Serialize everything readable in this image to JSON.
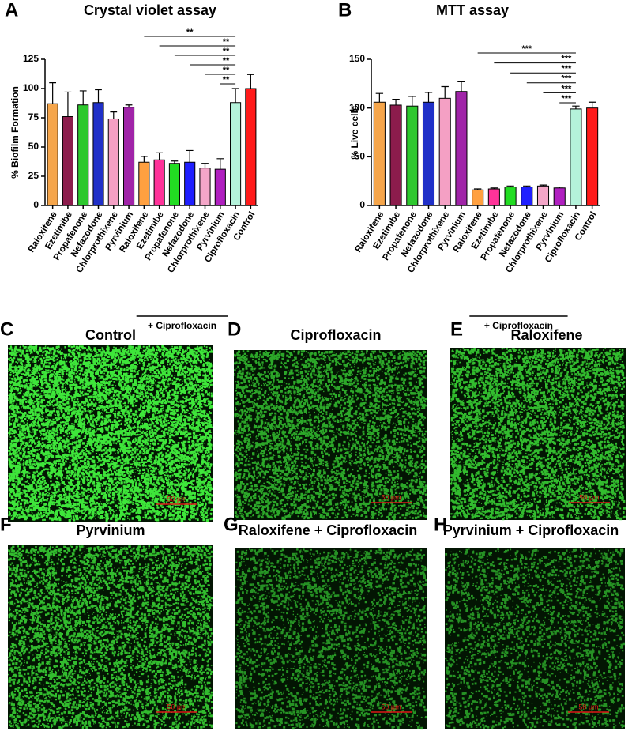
{
  "chart_data": [
    {
      "type": "bar",
      "letter": "A",
      "title": "Crystal violet assay",
      "y_label": "% Biofilm Formation",
      "categories": [
        "Raloxifene",
        "Ezetimibe",
        "Propafenone",
        "Nefazodone",
        "Chlorprothixene",
        "Pyrvinium",
        "Raloxifene",
        "Ezetimibe",
        "Propafenone",
        "Nefazodone",
        "Chlorprothixene",
        "Pyrvinium",
        "Ciprofloxacin",
        "Control"
      ],
      "values": [
        87,
        76,
        86,
        88,
        74,
        84,
        37,
        39,
        36,
        37,
        32,
        31,
        88,
        100
      ],
      "errors": [
        18,
        21,
        12,
        11,
        6,
        2,
        5,
        6,
        2,
        10,
        4,
        9,
        12,
        12
      ],
      "colors": [
        "#f5a54a",
        "#8c1c4c",
        "#2ec82e",
        "#2030c8",
        "#f4a0c4",
        "#a024a8",
        "#ffa040",
        "#ff3399",
        "#22dd22",
        "#1f1fff",
        "#f4a6c8",
        "#b020c0",
        "#b4f2da",
        "#ff1a1a"
      ],
      "ylim": [
        0,
        125
      ],
      "yticks": [
        0,
        25,
        50,
        75,
        100,
        125
      ],
      "group": {
        "label": "+ Ciprofloxacin",
        "from": 6,
        "to": 11
      },
      "comparisons": [
        {
          "from": 6,
          "to": 12,
          "label": "**"
        },
        {
          "from": 7,
          "to": 12,
          "label": "**"
        },
        {
          "from": 8,
          "to": 12,
          "label": "**"
        },
        {
          "from": 9,
          "to": 12,
          "label": "**"
        },
        {
          "from": 10,
          "to": 12,
          "label": "**"
        },
        {
          "from": 11,
          "to": 12,
          "label": "**"
        }
      ]
    },
    {
      "type": "bar",
      "letter": "B",
      "title": "MTT assay",
      "y_label": "% Live cells",
      "categories": [
        "Raloxifene",
        "Ezetimibe",
        "Propafenone",
        "Nefazodone",
        "Chlorprothixene",
        "Pyrvinium",
        "Raloxifene",
        "Ezetimibe",
        "Propafenone",
        "Nefazodone",
        "Chlorprothixene",
        "Pyrvinium",
        "Ciprofloxacin",
        "Control"
      ],
      "values": [
        106,
        103,
        102,
        106,
        110,
        117,
        16,
        17,
        19,
        19,
        20,
        18,
        99,
        100
      ],
      "errors": [
        9,
        6,
        10,
        10,
        12,
        10,
        1,
        1,
        1,
        1,
        1,
        1,
        3,
        6
      ],
      "colors": [
        "#f5a54a",
        "#8c1c4c",
        "#2ec82e",
        "#2030c8",
        "#f4a0c4",
        "#a024a8",
        "#ffa040",
        "#ff3399",
        "#22dd22",
        "#1f1fff",
        "#f4a6c8",
        "#b020c0",
        "#b4f2da",
        "#ff1a1a"
      ],
      "ylim": [
        0,
        150
      ],
      "yticks": [
        0,
        50,
        100,
        150
      ],
      "group": {
        "label": "+ Ciprofloxacin",
        "from": 6,
        "to": 11
      },
      "comparisons": [
        {
          "from": 6,
          "to": 12,
          "label": "***"
        },
        {
          "from": 7,
          "to": 12,
          "label": "***"
        },
        {
          "from": 8,
          "to": 12,
          "label": "***"
        },
        {
          "from": 9,
          "to": 12,
          "label": "***"
        },
        {
          "from": 10,
          "to": 12,
          "label": "***"
        },
        {
          "from": 11,
          "to": 12,
          "label": "***"
        }
      ]
    }
  ],
  "panels": [
    {
      "letter": "C",
      "title": "Control",
      "scale_bar": "50 µm"
    },
    {
      "letter": "D",
      "title": "Ciprofloxacin",
      "scale_bar": "50 µm"
    },
    {
      "letter": "E",
      "title": "Raloxifene",
      "scale_bar": "50 µm"
    },
    {
      "letter": "F",
      "title": "Pyrvinium",
      "scale_bar": "50 µm"
    },
    {
      "letter": "G",
      "title": "Raloxifene + Ciprofloxacin",
      "scale_bar": "50 µm"
    },
    {
      "letter": "H",
      "title": "Pyrvinium + Ciprofloxacin",
      "scale_bar": "50 µm"
    }
  ]
}
